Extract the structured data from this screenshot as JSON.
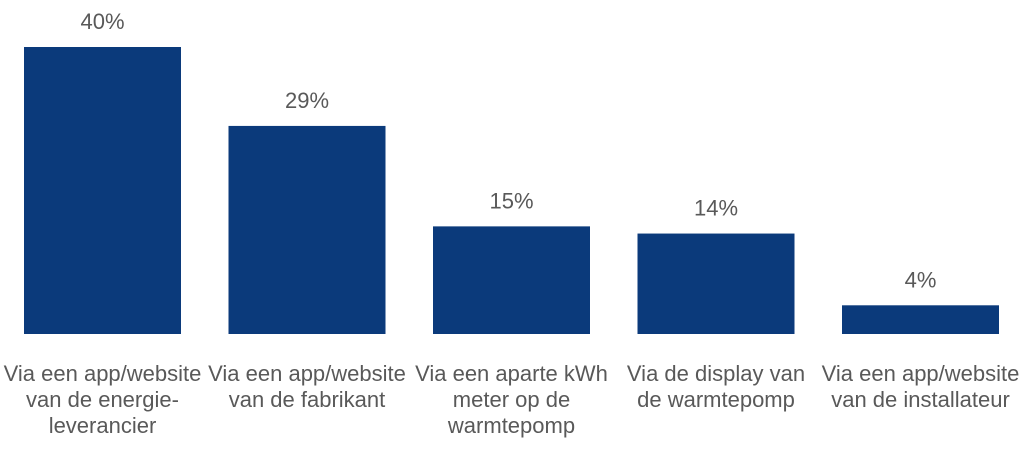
{
  "chart_data": {
    "type": "bar",
    "categories": [
      "Via een app/website van de energie-leverancier",
      "Via een app/website van de fabrikant",
      "Via een aparte kWh meter op de warmtepomp",
      "Via de display van de warmtepomp",
      "Via een app/website van de installateur"
    ],
    "values": [
      40,
      29,
      15,
      14,
      4
    ],
    "value_labels": [
      "40%",
      "29%",
      "15%",
      "14%",
      "4%"
    ],
    "color": "#0b3a7b"
  }
}
